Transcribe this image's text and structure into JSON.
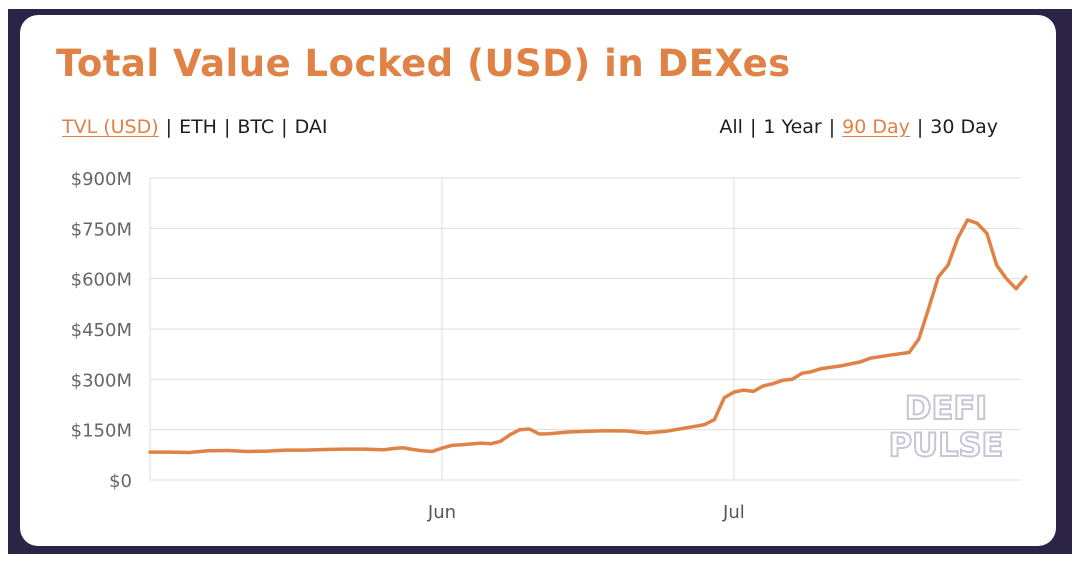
{
  "title": "Total Value Locked (USD) in DEXes",
  "metric_options": [
    {
      "label": "TVL (USD)",
      "active": true
    },
    {
      "label": "ETH",
      "active": false
    },
    {
      "label": "BTC",
      "active": false
    },
    {
      "label": "DAI",
      "active": false
    }
  ],
  "range_options": [
    {
      "label": "All",
      "active": false
    },
    {
      "label": "1 Year",
      "active": false
    },
    {
      "label": "90 Day",
      "active": true
    },
    {
      "label": "30 Day",
      "active": false
    }
  ],
  "separator": "|",
  "watermark": [
    "DEFI",
    "PULSE"
  ],
  "colors": {
    "accent": "#e08245",
    "frame": "#2b2446",
    "grid": "#dedede",
    "tick": "#666666"
  },
  "chart_data": {
    "type": "line",
    "title": "Total Value Locked (USD) in DEXes",
    "xlabel": "",
    "ylabel": "",
    "ylim": [
      0,
      900000000
    ],
    "y_ticks": [
      {
        "value": 0,
        "label": "$0"
      },
      {
        "value": 150000000,
        "label": "$150M"
      },
      {
        "value": 300000000,
        "label": "$300M"
      },
      {
        "value": 450000000,
        "label": "$450M"
      },
      {
        "value": 600000000,
        "label": "$600M"
      },
      {
        "value": 750000000,
        "label": "$750M"
      },
      {
        "value": 900000000,
        "label": "$900M"
      }
    ],
    "x_range": [
      "2020-05-02",
      "2020-07-30"
    ],
    "x_ticks": [
      {
        "date": "2020-06-01",
        "label": "Jun"
      },
      {
        "date": "2020-07-01",
        "label": "Jul"
      }
    ],
    "grid": true,
    "series": [
      {
        "color": "#e08245",
        "points": [
          [
            "2020-05-02",
            83000000
          ],
          [
            "2020-05-04",
            83000000
          ],
          [
            "2020-05-06",
            82000000
          ],
          [
            "2020-05-08",
            87000000
          ],
          [
            "2020-05-10",
            88000000
          ],
          [
            "2020-05-12",
            85000000
          ],
          [
            "2020-05-14",
            86000000
          ],
          [
            "2020-05-16",
            89000000
          ],
          [
            "2020-05-18",
            89000000
          ],
          [
            "2020-05-20",
            91000000
          ],
          [
            "2020-05-22",
            92000000
          ],
          [
            "2020-05-24",
            92000000
          ],
          [
            "2020-05-26",
            90000000
          ],
          [
            "2020-05-27",
            94000000
          ],
          [
            "2020-05-28",
            96000000
          ],
          [
            "2020-05-29",
            91000000
          ],
          [
            "2020-05-30",
            87000000
          ],
          [
            "2020-05-31",
            85000000
          ],
          [
            "2020-06-01",
            95000000
          ],
          [
            "2020-06-02",
            103000000
          ],
          [
            "2020-06-03",
            105000000
          ],
          [
            "2020-06-05",
            110000000
          ],
          [
            "2020-06-06",
            108000000
          ],
          [
            "2020-06-07",
            115000000
          ],
          [
            "2020-06-08",
            135000000
          ],
          [
            "2020-06-09",
            150000000
          ],
          [
            "2020-06-10",
            152000000
          ],
          [
            "2020-06-11",
            137000000
          ],
          [
            "2020-06-12",
            138000000
          ],
          [
            "2020-06-14",
            143000000
          ],
          [
            "2020-06-16",
            145000000
          ],
          [
            "2020-06-18",
            147000000
          ],
          [
            "2020-06-20",
            146000000
          ],
          [
            "2020-06-22",
            140000000
          ],
          [
            "2020-06-24",
            145000000
          ],
          [
            "2020-06-26",
            155000000
          ],
          [
            "2020-06-27",
            160000000
          ],
          [
            "2020-06-28",
            165000000
          ],
          [
            "2020-06-29",
            180000000
          ],
          [
            "2020-06-30",
            245000000
          ],
          [
            "2020-07-01",
            262000000
          ],
          [
            "2020-07-02",
            268000000
          ],
          [
            "2020-07-03",
            264000000
          ],
          [
            "2020-07-04",
            280000000
          ],
          [
            "2020-07-05",
            287000000
          ],
          [
            "2020-07-06",
            297000000
          ],
          [
            "2020-07-07",
            300000000
          ],
          [
            "2020-07-08",
            318000000
          ],
          [
            "2020-07-09",
            323000000
          ],
          [
            "2020-07-10",
            332000000
          ],
          [
            "2020-07-12",
            340000000
          ],
          [
            "2020-07-14",
            352000000
          ],
          [
            "2020-07-15",
            363000000
          ],
          [
            "2020-07-17",
            372000000
          ],
          [
            "2020-07-19",
            380000000
          ],
          [
            "2020-07-20",
            420000000
          ],
          [
            "2020-07-21",
            510000000
          ],
          [
            "2020-07-22",
            605000000
          ],
          [
            "2020-07-23",
            640000000
          ],
          [
            "2020-07-24",
            720000000
          ],
          [
            "2020-07-25",
            775000000
          ],
          [
            "2020-07-26",
            765000000
          ],
          [
            "2020-07-27",
            735000000
          ],
          [
            "2020-07-28",
            640000000
          ],
          [
            "2020-07-29",
            600000000
          ],
          [
            "2020-07-30",
            570000000
          ],
          [
            "2020-07-31",
            605000000
          ]
        ]
      }
    ]
  }
}
